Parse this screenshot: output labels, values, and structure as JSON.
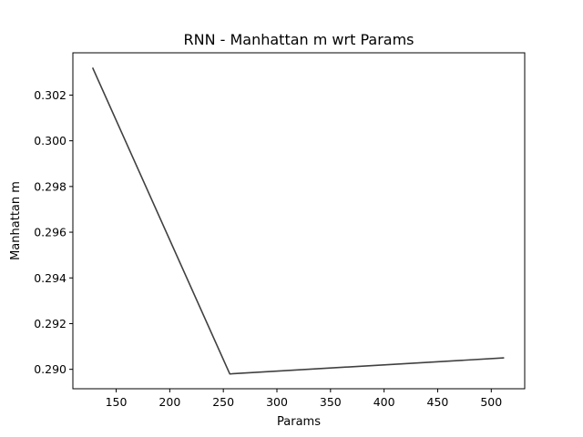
{
  "chart_data": {
    "type": "line",
    "title": "RNN - Manhattan m wrt Params",
    "xlabel": "Params",
    "ylabel": "Manhattan m",
    "xlim": [
      109.6,
      531.2
    ],
    "ylim": [
      0.28915,
      0.30385
    ],
    "xticks": [
      150,
      200,
      250,
      300,
      350,
      400,
      450,
      500
    ],
    "yticks": [
      0.29,
      0.292,
      0.294,
      0.296,
      0.298,
      0.3,
      0.302
    ],
    "ytick_labels": [
      "0.290",
      "0.292",
      "0.294",
      "0.296",
      "0.298",
      "0.300",
      "0.302"
    ],
    "grid": false,
    "series": [
      {
        "x": [
          128,
          256,
          512
        ],
        "y": [
          0.3032,
          0.2898,
          0.2905
        ],
        "color": "#404040"
      }
    ]
  }
}
